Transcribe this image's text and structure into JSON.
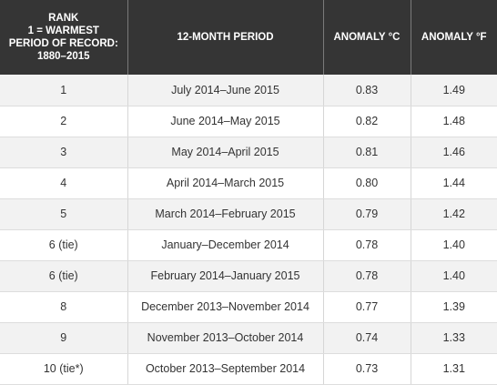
{
  "table": {
    "headers": {
      "rank_lines": [
        "RANK",
        "1 = WARMEST",
        "PERIOD OF RECORD:",
        "1880–2015"
      ],
      "period": "12-MONTH PERIOD",
      "anomaly_c": "ANOMALY °C",
      "anomaly_f": "ANOMALY °F"
    },
    "rows": [
      {
        "rank": "1",
        "period": "July 2014–June 2015",
        "anomaly_c": "0.83",
        "anomaly_f": "1.49"
      },
      {
        "rank": "2",
        "period": "June 2014–May 2015",
        "anomaly_c": "0.82",
        "anomaly_f": "1.48"
      },
      {
        "rank": "3",
        "period": "May 2014–April 2015",
        "anomaly_c": "0.81",
        "anomaly_f": "1.46"
      },
      {
        "rank": "4",
        "period": "April 2014–March 2015",
        "anomaly_c": "0.80",
        "anomaly_f": "1.44"
      },
      {
        "rank": "5",
        "period": "March 2014–February 2015",
        "anomaly_c": "0.79",
        "anomaly_f": "1.42"
      },
      {
        "rank": "6 (tie)",
        "period": "January–December 2014",
        "anomaly_c": "0.78",
        "anomaly_f": "1.40"
      },
      {
        "rank": "6 (tie)",
        "period": "February 2014–January 2015",
        "anomaly_c": "0.78",
        "anomaly_f": "1.40"
      },
      {
        "rank": "8",
        "period": "December 2013–November 2014",
        "anomaly_c": "0.77",
        "anomaly_f": "1.39"
      },
      {
        "rank": "9",
        "period": "November 2013–October 2014",
        "anomaly_c": "0.74",
        "anomaly_f": "1.33"
      },
      {
        "rank": "10 (tie*)",
        "period": "October 2013–September 2014",
        "anomaly_c": "0.73",
        "anomaly_f": "1.31"
      }
    ]
  },
  "colors": {
    "header_bg": "#353535",
    "header_text": "#ffffff",
    "row_odd_bg": "#f2f2f2",
    "row_even_bg": "#ffffff",
    "body_text": "#333333"
  }
}
